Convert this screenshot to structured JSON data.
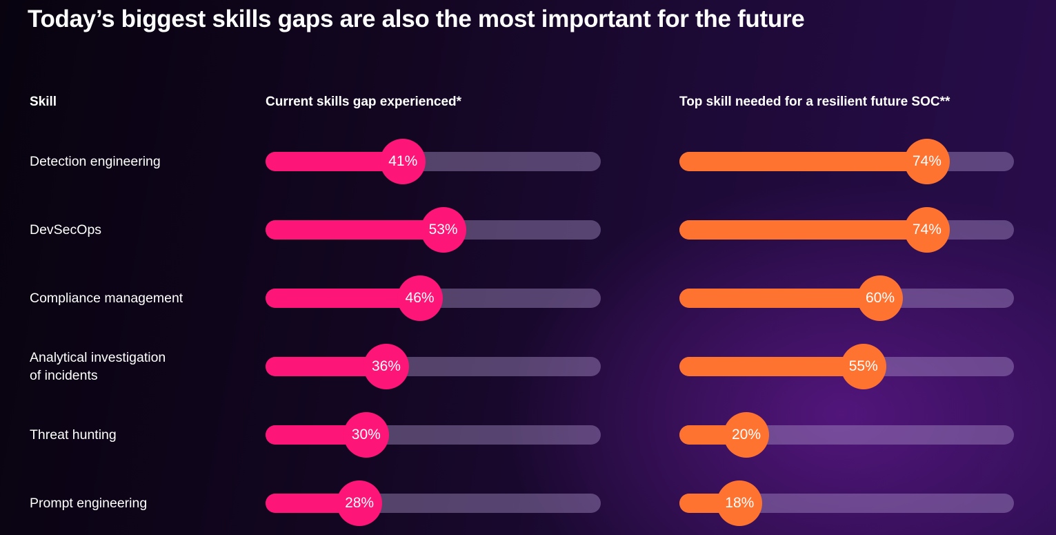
{
  "title": "Today’s biggest skills gaps are also the most important for the future",
  "headers": {
    "skill": "Skill",
    "current": "Current skills gap experienced*",
    "future": "Top skill needed for a resilient future SOC**"
  },
  "chart_data": {
    "type": "bar",
    "title": "Today’s biggest skills gaps are also the most important for the future",
    "categories": [
      "Detection engineering",
      "DevSecOps",
      "Compliance management",
      "Analytical investigation\nof incidents",
      "Threat hunting",
      "Prompt engineering"
    ],
    "series": [
      {
        "name": "Current skills gap experienced*",
        "color": "#fe1578",
        "values": [
          41,
          53,
          46,
          36,
          30,
          28
        ],
        "labels": [
          "41%",
          "53%",
          "46%",
          "36%",
          "30%",
          "28%"
        ]
      },
      {
        "name": "Top skill needed for a resilient future SOC**",
        "color": "#ff7331",
        "values": [
          74,
          74,
          60,
          55,
          20,
          18
        ],
        "labels": [
          "74%",
          "74%",
          "60%",
          "55%",
          "20%",
          "18%"
        ]
      }
    ],
    "ylim": [
      0,
      100
    ]
  }
}
